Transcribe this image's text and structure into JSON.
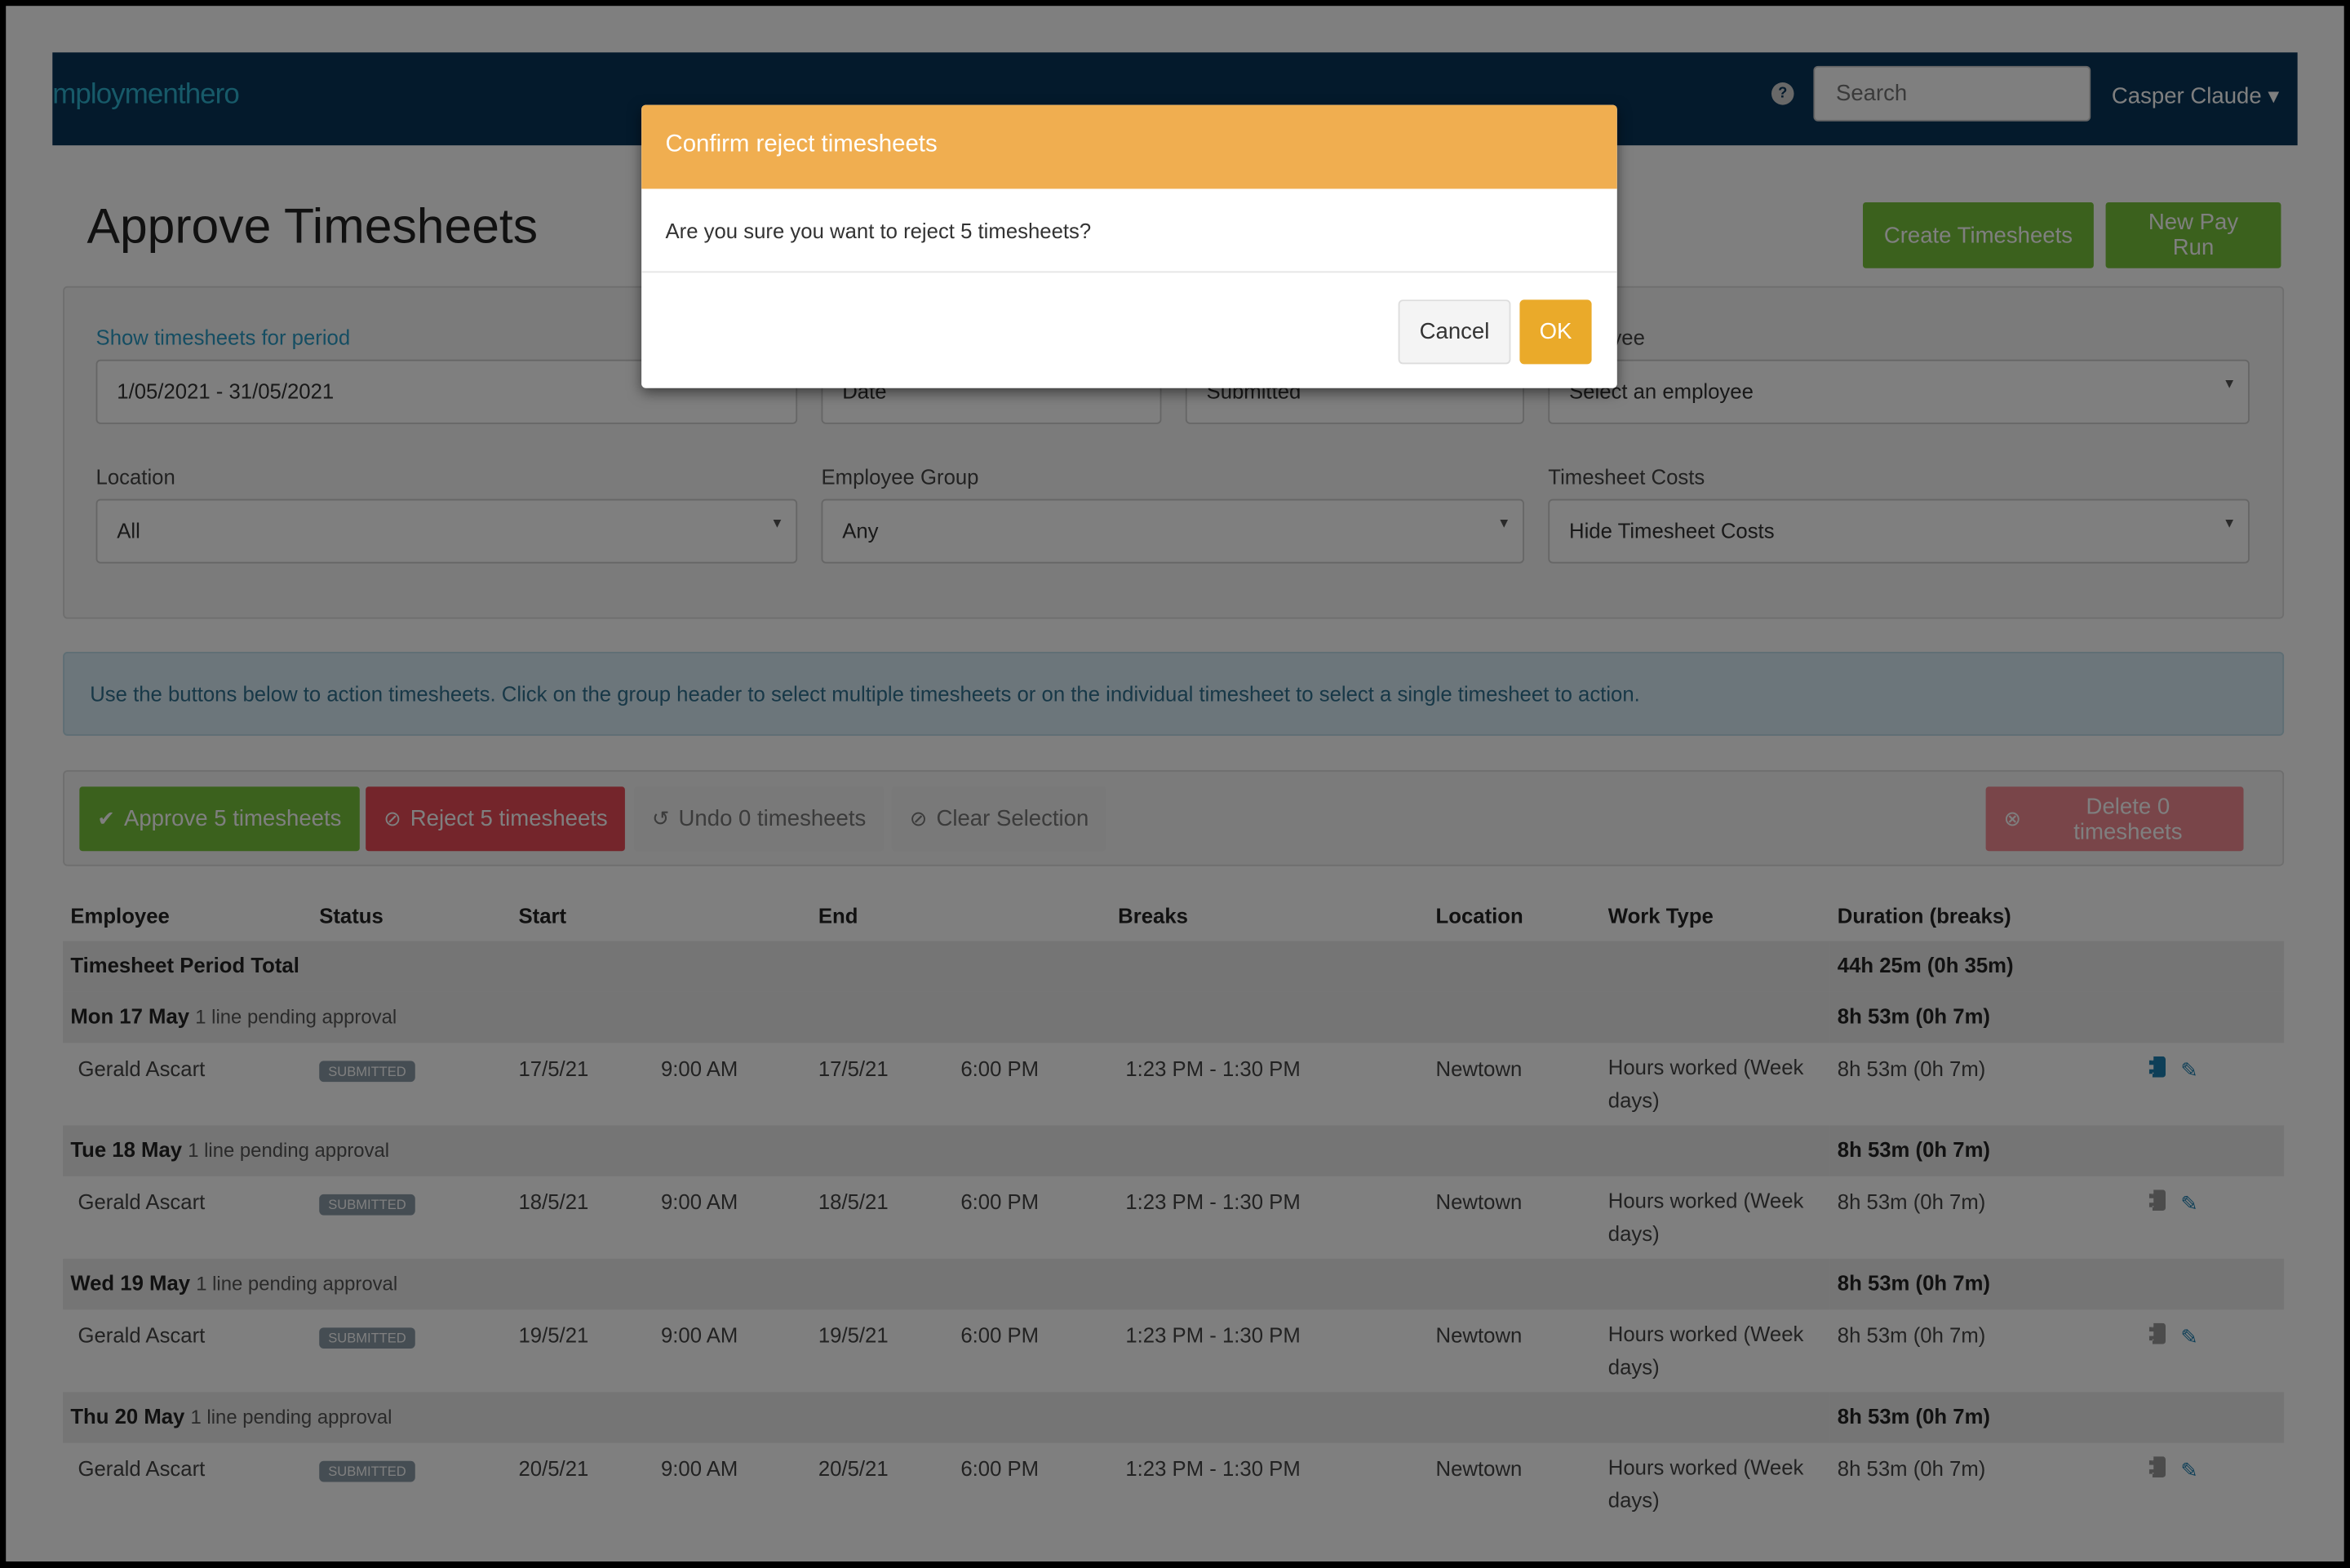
{
  "nav": {
    "logo": "mploymenthero",
    "help_icon": "question-icon",
    "search_placeholder": "Search",
    "user": "Casper Claude ▾"
  },
  "page": {
    "title": "Approve Timesheets",
    "create_btn": "Create Timesheets",
    "new_pay_run_btn": "New Pay Run"
  },
  "filters": {
    "period_label": "Show timesheets for period",
    "period_value": "1/05/2021 - 31/05/2021",
    "date_value": "Date",
    "status_value": "Submitted",
    "employee_label": "Employee",
    "employee_label_visible": "yee",
    "employee_value": "Select an employee",
    "location_label": "Location",
    "location_value": "All",
    "group_label": "Employee Group",
    "group_value": "Any",
    "costs_label": "Timesheet Costs",
    "costs_value": "Hide Timesheet Costs"
  },
  "info": "Use the buttons below to action timesheets. Click on the group header to select multiple timesheets or on the individual timesheet to select a single timesheet to action.",
  "actions": {
    "approve": "Approve 5 timesheets",
    "reject": "Reject 5 timesheets",
    "undo": "Undo 0 timesheets",
    "clear": "Clear Selection",
    "delete": "Delete 0 timesheets"
  },
  "table": {
    "headers": [
      "Employee",
      "Status",
      "Start",
      "",
      "End",
      "",
      "Breaks",
      "Location",
      "Work Type",
      "Duration (breaks)",
      ""
    ],
    "total_label": "Timesheet Period Total",
    "total_value": "44h 25m (0h 35m)",
    "groups": [
      {
        "day": "Mon 17 May",
        "pending": "1 line pending approval",
        "duration": "8h 53m (0h 7m)",
        "row": {
          "employee": "Gerald Ascart",
          "status": "SUBMITTED",
          "start_date": "17/5/21",
          "start_time": "9:00 AM",
          "end_date": "17/5/21",
          "end_time": "6:00 PM",
          "breaks": "1:23 PM - 1:30 PM",
          "location": "Newtown",
          "work_type": "Hours worked (Week days)",
          "duration": "8h 53m (0h 7m)"
        }
      },
      {
        "day": "Tue 18 May",
        "pending": "1 line pending approval",
        "duration": "8h 53m (0h 7m)",
        "row": {
          "employee": "Gerald Ascart",
          "status": "SUBMITTED",
          "start_date": "18/5/21",
          "start_time": "9:00 AM",
          "end_date": "18/5/21",
          "end_time": "6:00 PM",
          "breaks": "1:23 PM - 1:30 PM",
          "location": "Newtown",
          "work_type": "Hours worked (Week days)",
          "duration": "8h 53m (0h 7m)"
        }
      },
      {
        "day": "Wed 19 May",
        "pending": "1 line pending approval",
        "duration": "8h 53m (0h 7m)",
        "row": {
          "employee": "Gerald Ascart",
          "status": "SUBMITTED",
          "start_date": "19/5/21",
          "start_time": "9:00 AM",
          "end_date": "19/5/21",
          "end_time": "6:00 PM",
          "breaks": "1:23 PM - 1:30 PM",
          "location": "Newtown",
          "work_type": "Hours worked (Week days)",
          "duration": "8h 53m (0h 7m)"
        }
      },
      {
        "day": "Thu 20 May",
        "pending": "1 line pending approval",
        "duration": "8h 53m (0h 7m)",
        "row": {
          "employee": "Gerald Ascart",
          "status": "SUBMITTED",
          "start_date": "20/5/21",
          "start_time": "9:00 AM",
          "end_date": "20/5/21",
          "end_time": "6:00 PM",
          "breaks": "1:23 PM - 1:30 PM",
          "location": "Newtown",
          "work_type": "Hours worked (Week days)",
          "duration": "8h 53m (0h 7m)"
        }
      }
    ]
  },
  "modal": {
    "title": "Confirm reject timesheets",
    "body": "Are you sure you want to reject 5 timesheets?",
    "cancel": "Cancel",
    "ok": "OK"
  },
  "colors": {
    "modal_header": "#f0ae50",
    "ok": "#eaaa2a",
    "approve": "#76c33a",
    "reject": "#e84a56",
    "nav": "#083458"
  }
}
